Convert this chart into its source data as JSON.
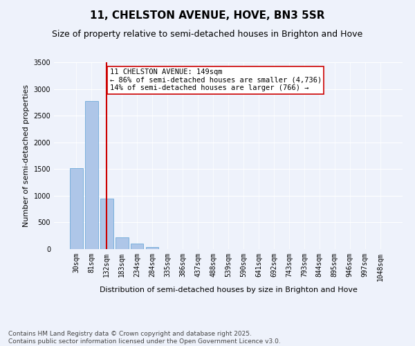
{
  "title": "11, CHELSTON AVENUE, HOVE, BN3 5SR",
  "subtitle": "Size of property relative to semi-detached houses in Brighton and Hove",
  "xlabel": "Distribution of semi-detached houses by size in Brighton and Hove",
  "ylabel": "Number of semi-detached properties",
  "categories": [
    "30sqm",
    "81sqm",
    "132sqm",
    "183sqm",
    "234sqm",
    "284sqm",
    "335sqm",
    "386sqm",
    "437sqm",
    "488sqm",
    "539sqm",
    "590sqm",
    "641sqm",
    "692sqm",
    "743sqm",
    "793sqm",
    "844sqm",
    "895sqm",
    "946sqm",
    "997sqm",
    "1048sqm"
  ],
  "values": [
    1520,
    2780,
    950,
    215,
    110,
    35,
    0,
    0,
    0,
    0,
    0,
    0,
    0,
    0,
    0,
    0,
    0,
    0,
    0,
    0,
    0
  ],
  "bar_color": "#aec6e8",
  "bar_edge_color": "#5a9fd4",
  "property_bin_index": 2,
  "vline_color": "#cc0000",
  "annotation_text": "11 CHELSTON AVENUE: 149sqm\n← 86% of semi-detached houses are smaller (4,736)\n14% of semi-detached houses are larger (766) →",
  "annotation_box_color": "#cc0000",
  "ylim": [
    0,
    3500
  ],
  "yticks": [
    0,
    500,
    1000,
    1500,
    2000,
    2500,
    3000,
    3500
  ],
  "background_color": "#eef2fb",
  "grid_color": "#ffffff",
  "footer_text": "Contains HM Land Registry data © Crown copyright and database right 2025.\nContains public sector information licensed under the Open Government Licence v3.0.",
  "title_fontsize": 11,
  "subtitle_fontsize": 9,
  "label_fontsize": 8,
  "tick_fontsize": 7,
  "footer_fontsize": 6.5,
  "annotation_fontsize": 7.5
}
